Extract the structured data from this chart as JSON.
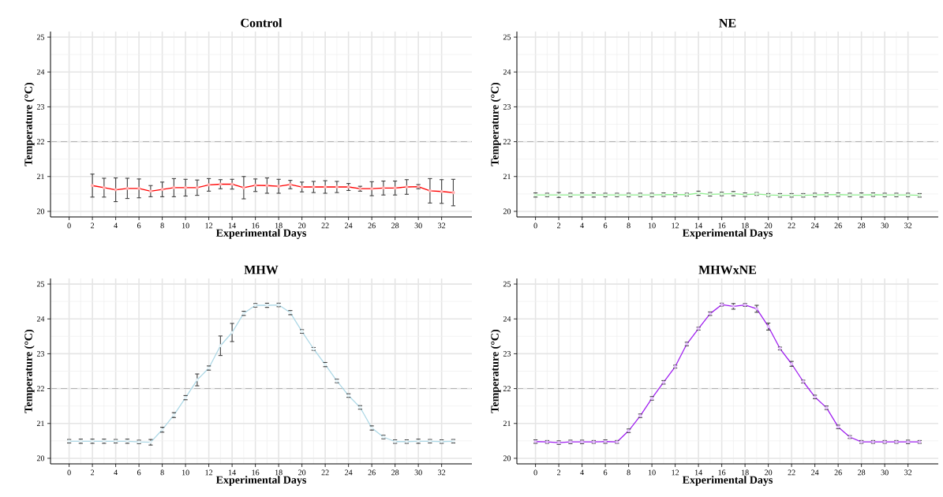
{
  "chart_data": [
    {
      "type": "line",
      "title": "Control",
      "xlabel": "Experimental Days",
      "ylabel": "Temperature (°C)",
      "color": "#ff0000",
      "marker": "circle",
      "grid": true,
      "x": [
        2,
        3,
        4,
        5,
        6,
        7,
        8,
        9,
        10,
        11,
        12,
        13,
        14,
        15,
        16,
        17,
        18,
        19,
        20,
        21,
        22,
        23,
        24,
        25,
        26,
        27,
        28,
        29,
        30,
        31,
        32,
        33
      ],
      "values": [
        20.74,
        20.68,
        20.62,
        20.66,
        20.66,
        20.58,
        20.63,
        20.68,
        20.68,
        20.68,
        20.76,
        20.78,
        20.78,
        20.68,
        20.75,
        20.74,
        20.72,
        20.77,
        20.7,
        20.7,
        20.7,
        20.7,
        20.7,
        20.65,
        20.65,
        20.67,
        20.67,
        20.7,
        20.71,
        20.59,
        20.57,
        20.54
      ],
      "errors": [
        0.33,
        0.27,
        0.34,
        0.29,
        0.27,
        0.16,
        0.21,
        0.26,
        0.24,
        0.22,
        0.18,
        0.13,
        0.14,
        0.32,
        0.18,
        0.22,
        0.2,
        0.12,
        0.14,
        0.16,
        0.18,
        0.16,
        0.1,
        0.07,
        0.2,
        0.2,
        0.2,
        0.21,
        0.06,
        0.35,
        0.34,
        0.38
      ],
      "xlim": [
        -1.6,
        34.6
      ],
      "ylim": [
        19.84,
        25.16
      ],
      "xticks": [
        0,
        2,
        4,
        6,
        8,
        10,
        12,
        14,
        16,
        18,
        20,
        22,
        24,
        26,
        28,
        30,
        32
      ],
      "yticks": [
        20,
        21,
        22,
        23,
        24,
        25
      ],
      "ref_lines": [
        {
          "axis": "y",
          "value": 22,
          "color": "#b3b3b3",
          "line_style": "dashed"
        }
      ]
    },
    {
      "type": "line",
      "title": "NE",
      "xlabel": "Experimental Days",
      "ylabel": "Temperature (°C)",
      "color": "#90ee90",
      "marker": "circle",
      "grid": true,
      "x": [
        0,
        1,
        2,
        3,
        4,
        5,
        6,
        7,
        8,
        9,
        10,
        11,
        12,
        13,
        14,
        15,
        16,
        17,
        18,
        19,
        20,
        21,
        22,
        23,
        24,
        25,
        26,
        27,
        28,
        29,
        30,
        31,
        32,
        33
      ],
      "values": [
        20.47,
        20.47,
        20.47,
        20.47,
        20.47,
        20.47,
        20.47,
        20.47,
        20.47,
        20.47,
        20.47,
        20.48,
        20.48,
        20.48,
        20.52,
        20.49,
        20.5,
        20.51,
        20.48,
        20.5,
        20.47,
        20.46,
        20.46,
        20.46,
        20.47,
        20.48,
        20.48,
        20.47,
        20.47,
        20.48,
        20.47,
        20.47,
        20.47,
        20.46
      ],
      "errors": [
        0.06,
        0.05,
        0.07,
        0.05,
        0.06,
        0.06,
        0.05,
        0.05,
        0.05,
        0.05,
        0.05,
        0.05,
        0.05,
        0.04,
        0.06,
        0.05,
        0.05,
        0.06,
        0.05,
        0.04,
        0.04,
        0.05,
        0.05,
        0.05,
        0.05,
        0.05,
        0.05,
        0.05,
        0.06,
        0.05,
        0.05,
        0.05,
        0.05,
        0.05
      ],
      "xlim": [
        -1.6,
        34.6
      ],
      "ylim": [
        19.84,
        25.16
      ],
      "xticks": [
        0,
        2,
        4,
        6,
        8,
        10,
        12,
        14,
        16,
        18,
        20,
        22,
        24,
        26,
        28,
        30,
        32
      ],
      "yticks": [
        20,
        21,
        22,
        23,
        24,
        25
      ],
      "ref_lines": [
        {
          "axis": "y",
          "value": 22,
          "color": "#b3b3b3",
          "line_style": "dashed"
        }
      ]
    },
    {
      "type": "line",
      "title": "MHW",
      "xlabel": "Experimental Days",
      "ylabel": "Temperature (°C)",
      "color": "#add8e6",
      "marker": "circle",
      "grid": true,
      "x": [
        0,
        1,
        2,
        3,
        4,
        5,
        6,
        7,
        8,
        9,
        10,
        11,
        12,
        13,
        14,
        15,
        16,
        17,
        18,
        19,
        20,
        21,
        22,
        23,
        24,
        25,
        26,
        27,
        28,
        29,
        30,
        31,
        32,
        33
      ],
      "values": [
        20.49,
        20.49,
        20.49,
        20.49,
        20.49,
        20.49,
        20.47,
        20.46,
        20.82,
        21.24,
        21.74,
        22.25,
        22.59,
        23.23,
        23.61,
        24.16,
        24.39,
        24.39,
        24.4,
        24.18,
        23.64,
        23.14,
        22.69,
        22.22,
        21.8,
        21.46,
        20.87,
        20.61,
        20.48,
        20.48,
        20.49,
        20.49,
        20.48,
        20.49
      ],
      "errors": [
        0.05,
        0.06,
        0.06,
        0.06,
        0.05,
        0.06,
        0.05,
        0.08,
        0.07,
        0.07,
        0.06,
        0.17,
        0.06,
        0.28,
        0.26,
        0.06,
        0.05,
        0.06,
        0.05,
        0.06,
        0.05,
        0.04,
        0.06,
        0.05,
        0.05,
        0.05,
        0.06,
        0.05,
        0.05,
        0.05,
        0.06,
        0.05,
        0.05,
        0.05
      ],
      "xlim": [
        -1.6,
        34.6
      ],
      "ylim": [
        19.84,
        25.16
      ],
      "xticks": [
        0,
        2,
        4,
        6,
        8,
        10,
        12,
        14,
        16,
        18,
        20,
        22,
        24,
        26,
        28,
        30,
        32
      ],
      "yticks": [
        20,
        21,
        22,
        23,
        24,
        25
      ],
      "ref_lines": [
        {
          "axis": "y",
          "value": 22,
          "color": "#b3b3b3",
          "line_style": "dashed"
        }
      ]
    },
    {
      "type": "line",
      "title": "MHWxNE",
      "xlabel": "Experimental Days",
      "ylabel": "Temperature (°C)",
      "color": "#a020f0",
      "marker": "circle",
      "grid": true,
      "x": [
        0,
        1,
        2,
        3,
        4,
        5,
        6,
        7,
        8,
        9,
        10,
        11,
        12,
        13,
        14,
        15,
        16,
        17,
        18,
        19,
        20,
        21,
        22,
        23,
        24,
        25,
        26,
        27,
        28,
        29,
        30,
        31,
        32,
        33
      ],
      "values": [
        20.48,
        20.47,
        20.45,
        20.47,
        20.47,
        20.47,
        20.48,
        20.47,
        20.79,
        21.22,
        21.72,
        22.18,
        22.63,
        23.28,
        23.72,
        24.15,
        24.41,
        24.36,
        24.4,
        24.29,
        23.78,
        23.15,
        22.71,
        22.2,
        21.76,
        21.45,
        20.9,
        20.61,
        20.47,
        20.47,
        20.47,
        20.47,
        20.47,
        20.47
      ],
      "errors": [
        0.05,
        0.04,
        0.05,
        0.05,
        0.05,
        0.04,
        0.05,
        0.04,
        0.05,
        0.05,
        0.05,
        0.05,
        0.04,
        0.05,
        0.04,
        0.05,
        0.04,
        0.08,
        0.04,
        0.1,
        0.1,
        0.04,
        0.07,
        0.04,
        0.05,
        0.05,
        0.05,
        0.04,
        0.04,
        0.04,
        0.04,
        0.04,
        0.05,
        0.04
      ],
      "xlim": [
        -1.6,
        34.6
      ],
      "ylim": [
        19.84,
        25.16
      ],
      "xticks": [
        0,
        2,
        4,
        6,
        8,
        10,
        12,
        14,
        16,
        18,
        20,
        22,
        24,
        26,
        28,
        30,
        32
      ],
      "yticks": [
        20,
        21,
        22,
        23,
        24,
        25
      ],
      "ref_lines": [
        {
          "axis": "y",
          "value": 22,
          "color": "#b3b3b3",
          "line_style": "dashed"
        }
      ]
    }
  ]
}
